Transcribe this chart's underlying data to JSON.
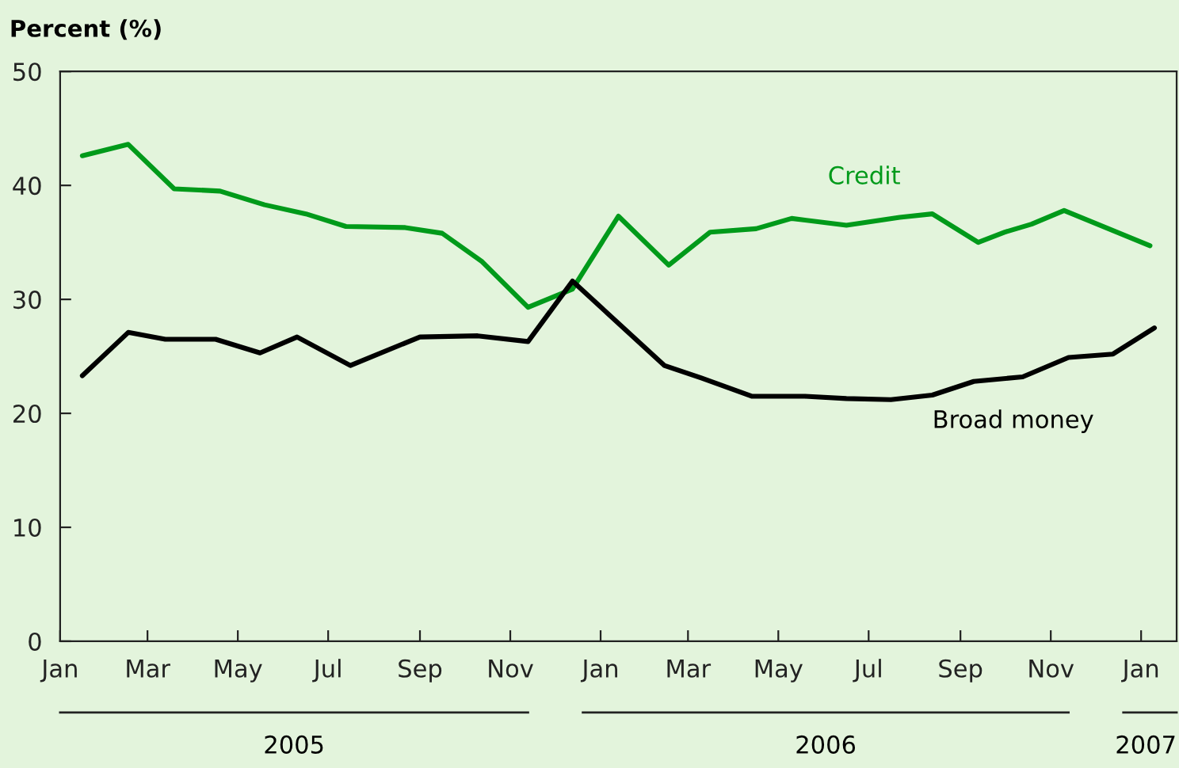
{
  "chart_data": {
    "type": "line",
    "ylabel": "Percent (%)",
    "xlim": [
      "2005-01-01",
      "2007-01-25"
    ],
    "xticks": [
      {
        "value": "2005-01-01",
        "label": "Jan"
      },
      {
        "value": "2005-03-01",
        "label": "Mar"
      },
      {
        "value": "2005-05-01",
        "label": "May"
      },
      {
        "value": "2005-07-01",
        "label": "Jul"
      },
      {
        "value": "2005-09-01",
        "label": "Sep"
      },
      {
        "value": "2005-11-01",
        "label": "Nov"
      },
      {
        "value": "2006-01-01",
        "label": "Jan"
      },
      {
        "value": "2006-03-01",
        "label": "Mar"
      },
      {
        "value": "2006-05-01",
        "label": "May"
      },
      {
        "value": "2006-07-01",
        "label": "Jul"
      },
      {
        "value": "2006-09-01",
        "label": "Sep"
      },
      {
        "value": "2006-11-01",
        "label": "Nov"
      },
      {
        "value": "2007-01-01",
        "label": "Jan"
      }
    ],
    "ylim": [
      0,
      50
    ],
    "yticks": [
      0,
      10,
      20,
      30,
      40,
      50
    ],
    "grid": false,
    "legend": false,
    "marker": "none",
    "line_style": "solid",
    "annotations": [
      "2005",
      "2006",
      "2007"
    ],
    "series": [
      {
        "name": "Credit",
        "color": "#009a1a",
        "x": [
          "2005-01-16",
          "2005-02-16",
          "2005-03-19",
          "2005-04-19",
          "2005-05-19",
          "2005-06-16",
          "2005-07-13",
          "2005-08-22",
          "2005-09-16",
          "2005-10-13",
          "2005-11-13",
          "2005-12-13",
          "2006-01-13",
          "2006-02-16",
          "2006-03-16",
          "2006-04-16",
          "2006-05-10",
          "2006-06-16",
          "2006-07-22",
          "2006-08-13",
          "2006-09-13",
          "2006-10-01",
          "2006-10-19",
          "2006-11-10",
          "2007-01-07"
        ],
        "values": [
          42.6,
          43.6,
          39.7,
          39.5,
          38.3,
          37.5,
          36.4,
          36.3,
          35.8,
          33.3,
          29.3,
          30.9,
          37.3,
          33.0,
          35.9,
          36.2,
          37.1,
          36.5,
          37.2,
          37.5,
          35.0,
          35.9,
          36.6,
          37.8,
          34.7
        ]
      },
      {
        "name": "Broad money",
        "color": "#000000",
        "x": [
          "2005-01-16",
          "2005-02-16",
          "2005-03-13",
          "2005-04-16",
          "2005-05-16",
          "2005-06-10",
          "2005-07-16",
          "2005-09-01",
          "2005-10-10",
          "2005-11-13",
          "2005-12-13",
          "2006-02-13",
          "2006-03-10",
          "2006-04-13",
          "2006-05-19",
          "2006-06-16",
          "2006-07-16",
          "2006-08-13",
          "2006-09-10",
          "2006-10-13",
          "2006-11-13",
          "2006-12-13",
          "2007-01-10"
        ],
        "values": [
          23.3,
          27.1,
          26.5,
          26.5,
          25.3,
          26.7,
          24.2,
          26.7,
          26.8,
          26.3,
          31.6,
          24.2,
          23.1,
          21.5,
          21.5,
          21.3,
          21.2,
          21.6,
          22.8,
          23.2,
          24.9,
          25.2,
          27.5
        ]
      }
    ]
  }
}
